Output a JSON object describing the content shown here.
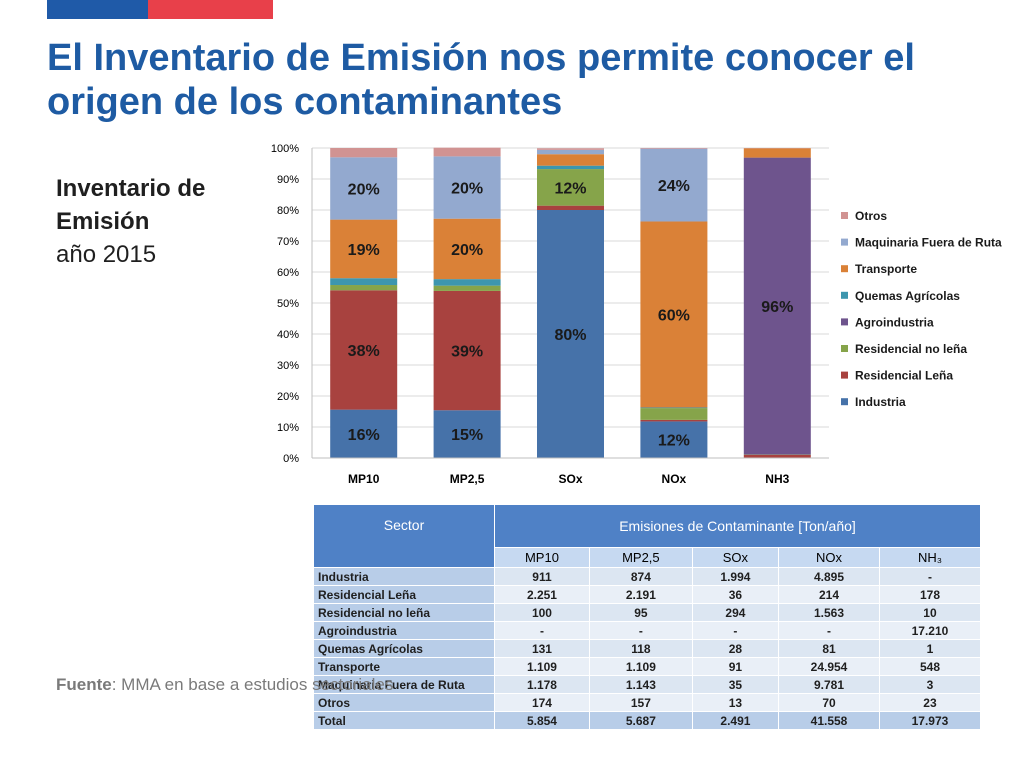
{
  "title": "El Inventario de Emisión nos permite conocer el origen de los contaminantes",
  "side": {
    "line1": "Inventario de",
    "line2": "Emisión",
    "line3": "año 2015"
  },
  "source": {
    "label": "Fuente",
    "text": ": MMA en base a estudios sectoriales"
  },
  "colors": {
    "accent_blue": "#1e5ba3",
    "accent_red": "#e8404a"
  },
  "chart_data": {
    "type": "bar",
    "stacked": true,
    "categories": [
      "MP10",
      "MP2,5",
      "SOx",
      "NOx",
      "NH3"
    ],
    "ylim": [
      0,
      100
    ],
    "yticks": [
      "0%",
      "10%",
      "20%",
      "30%",
      "40%",
      "50%",
      "60%",
      "70%",
      "80%",
      "90%",
      "100%"
    ],
    "legend_position": "right",
    "series": [
      {
        "name": "Industria",
        "color": "#4672a9",
        "values": [
          15.6,
          15.4,
          80.0,
          11.8,
          0.0
        ]
      },
      {
        "name": "Residencial Leña",
        "color": "#a8423f",
        "values": [
          38.5,
          38.5,
          1.4,
          0.5,
          1.0
        ]
      },
      {
        "name": "Residencial no leña",
        "color": "#86a44a",
        "values": [
          1.7,
          1.7,
          11.8,
          3.8,
          0.1
        ]
      },
      {
        "name": "Agroindustria",
        "color": "#6e548d",
        "values": [
          0,
          0,
          0,
          0,
          95.8
        ]
      },
      {
        "name": "Quemas Agrícolas",
        "color": "#3d96ae",
        "values": [
          2.2,
          2.1,
          1.1,
          0.2,
          0.0
        ]
      },
      {
        "name": "Transporte",
        "color": "#da8137",
        "values": [
          18.9,
          19.5,
          3.7,
          60.0,
          3.0
        ]
      },
      {
        "name": "Maquinaria Fuera de Ruta",
        "color": "#93a9cf",
        "values": [
          20.1,
          20.1,
          1.4,
          23.5,
          0.0
        ]
      },
      {
        "name": "Otros",
        "color": "#d19392",
        "values": [
          3.0,
          2.8,
          0.5,
          0.2,
          0.1
        ]
      }
    ],
    "data_labels": [
      {
        "category": 0,
        "series": 0,
        "text": "16%"
      },
      {
        "category": 0,
        "series": 1,
        "text": "38%"
      },
      {
        "category": 0,
        "series": 5,
        "text": "19%"
      },
      {
        "category": 0,
        "series": 6,
        "text": "20%"
      },
      {
        "category": 1,
        "series": 0,
        "text": "15%"
      },
      {
        "category": 1,
        "series": 1,
        "text": "39%"
      },
      {
        "category": 1,
        "series": 5,
        "text": "20%"
      },
      {
        "category": 1,
        "series": 6,
        "text": "20%"
      },
      {
        "category": 2,
        "series": 0,
        "text": "80%"
      },
      {
        "category": 2,
        "series": 2,
        "text": "12%"
      },
      {
        "category": 3,
        "series": 0,
        "text": "12%"
      },
      {
        "category": 3,
        "series": 5,
        "text": "60%"
      },
      {
        "category": 3,
        "series": 6,
        "text": "24%"
      },
      {
        "category": 4,
        "series": 3,
        "text": "96%"
      }
    ]
  },
  "table": {
    "header_sector": "Sector",
    "header_group": "Emisiones de Contaminante [Ton/año]",
    "columns": [
      "MP10",
      "MP2,5",
      "SOx",
      "NOx",
      "NH₃"
    ],
    "rows": [
      {
        "label": "Industria",
        "values": [
          "911",
          "874",
          "1.994",
          "4.895",
          "-"
        ]
      },
      {
        "label": "Residencial Leña",
        "values": [
          "2.251",
          "2.191",
          "36",
          "214",
          "178"
        ]
      },
      {
        "label": "Residencial no leña",
        "values": [
          "100",
          "95",
          "294",
          "1.563",
          "10"
        ]
      },
      {
        "label": "Agroindustria",
        "values": [
          "-",
          "-",
          "-",
          "-",
          "17.210"
        ]
      },
      {
        "label": "Quemas Agrícolas",
        "values": [
          "131",
          "118",
          "28",
          "81",
          "1"
        ]
      },
      {
        "label": "Transporte",
        "values": [
          "1.109",
          "1.109",
          "91",
          "24.954",
          "548"
        ]
      },
      {
        "label": "Maquinaria Fuera de Ruta",
        "values": [
          "1.178",
          "1.143",
          "35",
          "9.781",
          "3"
        ]
      },
      {
        "label": "Otros",
        "values": [
          "174",
          "157",
          "13",
          "70",
          "23"
        ]
      },
      {
        "label": "Total",
        "values": [
          "5.854",
          "5.687",
          "2.491",
          "41.558",
          "17.973"
        ]
      }
    ]
  }
}
